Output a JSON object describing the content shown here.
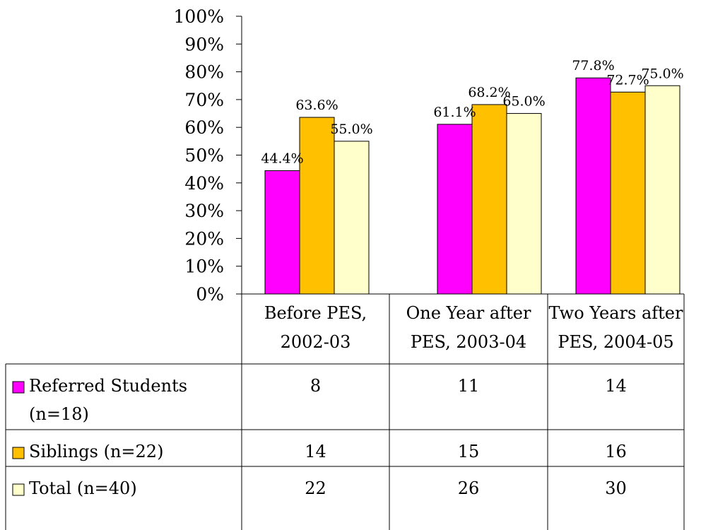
{
  "chart_data": {
    "type": "bar",
    "categories": [
      [
        "Before PES,",
        "2002-03"
      ],
      [
        "One Year after",
        "PES, 2003-04"
      ],
      [
        "Two Years after",
        "PES, 2004-05"
      ]
    ],
    "ylim": [
      0,
      100
    ],
    "yticks": [
      "0%",
      "10%",
      "20%",
      "30%",
      "40%",
      "50%",
      "60%",
      "70%",
      "80%",
      "90%",
      "100%"
    ],
    "series": [
      {
        "name": [
          "Referred Students",
          "(n=18)"
        ],
        "color": "#ff00ff",
        "values": [
          44.4,
          61.1,
          77.8
        ],
        "labels": [
          "44.4%",
          "61.1%",
          "77.8%"
        ],
        "table_values": [
          "8",
          "11",
          "14"
        ]
      },
      {
        "name": [
          "Siblings (n=22)"
        ],
        "color": "#ffc000",
        "values": [
          63.6,
          68.2,
          72.7
        ],
        "labels": [
          "63.6%",
          "68.2%",
          "72.7%"
        ],
        "table_values": [
          "14",
          "15",
          "16"
        ]
      },
      {
        "name": [
          "Total (n=40)"
        ],
        "color": "#ffffcc",
        "values": [
          55.0,
          65.0,
          75.0
        ],
        "labels": [
          "55.0%",
          "65.0%",
          "75.0%"
        ],
        "table_values": [
          "22",
          "26",
          "30"
        ]
      }
    ],
    "legend": "data-table"
  }
}
